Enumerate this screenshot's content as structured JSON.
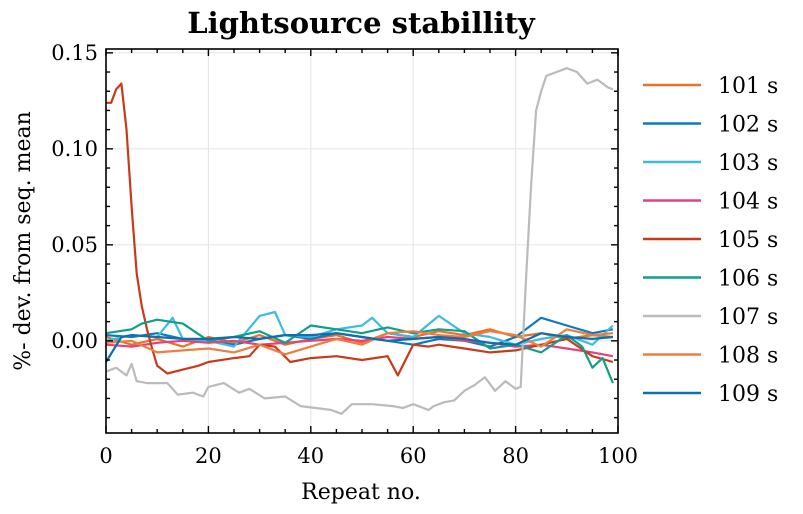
{
  "chart_data": {
    "type": "line",
    "title": "Lightsource  stabillity",
    "xlabel": "Repeat no.",
    "ylabel": "%- dev. from seq. mean",
    "xlim": [
      0,
      100
    ],
    "ylim": [
      -0.048,
      0.152
    ],
    "xticks": [
      0,
      20,
      40,
      60,
      80,
      100
    ],
    "xtick_labels": [
      "0",
      "20",
      "40",
      "60",
      "80",
      "100"
    ],
    "yticks": [
      0.0,
      0.05,
      0.1,
      0.15
    ],
    "ytick_labels": [
      "0.00",
      "0.05",
      "0.10",
      "0.15"
    ],
    "grid": true,
    "legend_position": "right outside",
    "series": [
      {
        "name": "101 s",
        "color": "#e8702a",
        "points": [
          [
            0,
            0.002
          ],
          [
            5,
            -0.002
          ],
          [
            10,
            0.001
          ],
          [
            15,
            -0.003
          ],
          [
            20,
            0.002
          ],
          [
            25,
            -0.001
          ],
          [
            30,
            0.003
          ],
          [
            35,
            -0.002
          ],
          [
            40,
            0.001
          ],
          [
            45,
            0.003
          ],
          [
            50,
            -0.001
          ],
          [
            55,
            0.004
          ],
          [
            60,
            0.002
          ],
          [
            65,
            0.005
          ],
          [
            70,
            0.003
          ],
          [
            75,
            0.006
          ],
          [
            80,
            0.002
          ],
          [
            85,
            0.004
          ],
          [
            90,
            0.001
          ],
          [
            95,
            0.003
          ],
          [
            99,
            0.002
          ]
        ]
      },
      {
        "name": "102 s",
        "color": "#0c7bbd",
        "points": [
          [
            0,
            0.003
          ],
          [
            5,
            0.002
          ],
          [
            10,
            0.004
          ],
          [
            15,
            0.001
          ],
          [
            20,
            0.0
          ],
          [
            25,
            -0.002
          ],
          [
            30,
            0.001
          ],
          [
            35,
            0.003
          ],
          [
            40,
            0.001
          ],
          [
            45,
            0.004
          ],
          [
            50,
            0.002
          ],
          [
            55,
            0.0
          ],
          [
            60,
            -0.002
          ],
          [
            65,
            0.001
          ],
          [
            70,
            0.0
          ],
          [
            75,
            -0.003
          ],
          [
            80,
            0.002
          ],
          [
            85,
            0.012
          ],
          [
            90,
            0.008
          ],
          [
            95,
            0.004
          ],
          [
            99,
            0.006
          ]
        ]
      },
      {
        "name": "103 s",
        "color": "#3dbbe3",
        "points": [
          [
            0,
            0.0
          ],
          [
            5,
            0.003
          ],
          [
            10,
            0.002
          ],
          [
            13,
            0.012
          ],
          [
            15,
            0.001
          ],
          [
            20,
            0.0
          ],
          [
            25,
            -0.003
          ],
          [
            30,
            0.013
          ],
          [
            33,
            0.015
          ],
          [
            35,
            0.003
          ],
          [
            40,
            0.002
          ],
          [
            45,
            0.006
          ],
          [
            50,
            0.008
          ],
          [
            52,
            0.012
          ],
          [
            55,
            0.004
          ],
          [
            60,
            0.002
          ],
          [
            65,
            0.013
          ],
          [
            70,
            0.004
          ],
          [
            75,
            0.002
          ],
          [
            80,
            -0.002
          ],
          [
            85,
            0.001
          ],
          [
            90,
            0.003
          ],
          [
            95,
            -0.002
          ],
          [
            99,
            0.008
          ]
        ]
      },
      {
        "name": "104 s",
        "color": "#e8407a",
        "points": [
          [
            0,
            -0.002
          ],
          [
            5,
            -0.003
          ],
          [
            10,
            -0.001
          ],
          [
            15,
            0.0
          ],
          [
            20,
            -0.001
          ],
          [
            25,
            0.0
          ],
          [
            30,
            -0.002
          ],
          [
            35,
            -0.001
          ],
          [
            40,
            0.0
          ],
          [
            45,
            0.001
          ],
          [
            50,
            0.0
          ],
          [
            55,
            0.002
          ],
          [
            60,
            0.001
          ],
          [
            65,
            0.002
          ],
          [
            70,
            0.0
          ],
          [
            75,
            -0.001
          ],
          [
            80,
            -0.003
          ],
          [
            85,
            -0.002
          ],
          [
            90,
            -0.004
          ],
          [
            95,
            -0.006
          ],
          [
            99,
            -0.008
          ]
        ]
      },
      {
        "name": "105 s",
        "color": "#c93a1b",
        "points": [
          [
            0,
            0.124
          ],
          [
            1,
            0.124
          ],
          [
            2,
            0.131
          ],
          [
            3,
            0.134
          ],
          [
            4,
            0.11
          ],
          [
            5,
            0.07
          ],
          [
            6,
            0.035
          ],
          [
            7,
            0.018
          ],
          [
            8,
            0.006
          ],
          [
            9,
            -0.004
          ],
          [
            10,
            -0.013
          ],
          [
            12,
            -0.017
          ],
          [
            15,
            -0.015
          ],
          [
            18,
            -0.013
          ],
          [
            20,
            -0.011
          ],
          [
            25,
            -0.009
          ],
          [
            28,
            -0.008
          ],
          [
            30,
            -0.002
          ],
          [
            33,
            -0.003
          ],
          [
            36,
            -0.011
          ],
          [
            40,
            -0.009
          ],
          [
            45,
            -0.008
          ],
          [
            50,
            -0.01
          ],
          [
            55,
            -0.008
          ],
          [
            57,
            -0.018
          ],
          [
            60,
            -0.002
          ],
          [
            63,
            -0.003
          ],
          [
            65,
            -0.002
          ],
          [
            70,
            -0.004
          ],
          [
            75,
            -0.006
          ],
          [
            80,
            -0.005
          ],
          [
            85,
            -0.002
          ],
          [
            90,
            0.001
          ],
          [
            95,
            -0.008
          ],
          [
            99,
            -0.011
          ]
        ]
      },
      {
        "name": "106 s",
        "color": "#119e8a",
        "points": [
          [
            0,
            0.004
          ],
          [
            5,
            0.006
          ],
          [
            7,
            0.009
          ],
          [
            10,
            0.011
          ],
          [
            15,
            0.009
          ],
          [
            20,
            0.0
          ],
          [
            25,
            0.002
          ],
          [
            30,
            0.005
          ],
          [
            35,
            -0.001
          ],
          [
            40,
            0.008
          ],
          [
            45,
            0.006
          ],
          [
            50,
            0.004
          ],
          [
            55,
            0.007
          ],
          [
            60,
            0.004
          ],
          [
            65,
            0.006
          ],
          [
            70,
            0.005
          ],
          [
            75,
            -0.004
          ],
          [
            80,
            -0.002
          ],
          [
            85,
            -0.006
          ],
          [
            90,
            0.003
          ],
          [
            93,
            -0.003
          ],
          [
            95,
            -0.014
          ],
          [
            97,
            -0.009
          ],
          [
            99,
            -0.022
          ]
        ]
      },
      {
        "name": "107 s",
        "color": "#bbbbbb",
        "points": [
          [
            0,
            -0.016
          ],
          [
            2,
            -0.014
          ],
          [
            4,
            -0.018
          ],
          [
            5,
            -0.012
          ],
          [
            6,
            -0.021
          ],
          [
            8,
            -0.022
          ],
          [
            12,
            -0.022
          ],
          [
            14,
            -0.028
          ],
          [
            17,
            -0.027
          ],
          [
            19,
            -0.029
          ],
          [
            20,
            -0.024
          ],
          [
            23,
            -0.022
          ],
          [
            26,
            -0.027
          ],
          [
            28,
            -0.025
          ],
          [
            31,
            -0.03
          ],
          [
            35,
            -0.029
          ],
          [
            38,
            -0.034
          ],
          [
            41,
            -0.035
          ],
          [
            44,
            -0.036
          ],
          [
            46,
            -0.038
          ],
          [
            48,
            -0.033
          ],
          [
            52,
            -0.033
          ],
          [
            56,
            -0.034
          ],
          [
            58,
            -0.035
          ],
          [
            60,
            -0.033
          ],
          [
            63,
            -0.036
          ],
          [
            64,
            -0.034
          ],
          [
            66,
            -0.032
          ],
          [
            68,
            -0.031
          ],
          [
            70,
            -0.026
          ],
          [
            72,
            -0.023
          ],
          [
            74,
            -0.019
          ],
          [
            76,
            -0.026
          ],
          [
            78,
            -0.021
          ],
          [
            80,
            -0.025
          ],
          [
            81,
            -0.024
          ],
          [
            82,
            0.03
          ],
          [
            83,
            0.08
          ],
          [
            84,
            0.12
          ],
          [
            85,
            0.13
          ],
          [
            86,
            0.138
          ],
          [
            88,
            0.14
          ],
          [
            90,
            0.142
          ],
          [
            92,
            0.14
          ],
          [
            94,
            0.134
          ],
          [
            96,
            0.136
          ],
          [
            98,
            0.132
          ],
          [
            99,
            0.131
          ]
        ]
      },
      {
        "name": "108 s",
        "color": "#ef7d40",
        "points": [
          [
            0,
            -0.001
          ],
          [
            5,
            0.0
          ],
          [
            10,
            -0.006
          ],
          [
            15,
            -0.005
          ],
          [
            20,
            -0.004
          ],
          [
            25,
            -0.006
          ],
          [
            30,
            -0.002
          ],
          [
            35,
            -0.007
          ],
          [
            40,
            -0.003
          ],
          [
            45,
            0.001
          ],
          [
            50,
            -0.002
          ],
          [
            55,
            0.004
          ],
          [
            60,
            0.005
          ],
          [
            65,
            0.003
          ],
          [
            70,
            0.002
          ],
          [
            75,
            0.005
          ],
          [
            80,
            0.003
          ],
          [
            85,
            -0.003
          ],
          [
            90,
            0.006
          ],
          [
            95,
            0.003
          ],
          [
            99,
            0.004
          ]
        ]
      },
      {
        "name": "109 s",
        "color": "#0d6fad",
        "points": [
          [
            0,
            -0.011
          ],
          [
            3,
            0.002
          ],
          [
            5,
            0.003
          ],
          [
            10,
            0.002
          ],
          [
            15,
            0.001
          ],
          [
            20,
            0.001
          ],
          [
            25,
            0.002
          ],
          [
            30,
            0.001
          ],
          [
            35,
            0.003
          ],
          [
            40,
            0.003
          ],
          [
            45,
            0.004
          ],
          [
            50,
            0.002
          ],
          [
            55,
            0.0
          ],
          [
            60,
            0.001
          ],
          [
            65,
            0.002
          ],
          [
            70,
            0.001
          ],
          [
            75,
            -0.001
          ],
          [
            80,
            -0.002
          ],
          [
            85,
            0.004
          ],
          [
            90,
            0.002
          ],
          [
            95,
            0.001
          ],
          [
            99,
            0.002
          ]
        ]
      }
    ]
  }
}
